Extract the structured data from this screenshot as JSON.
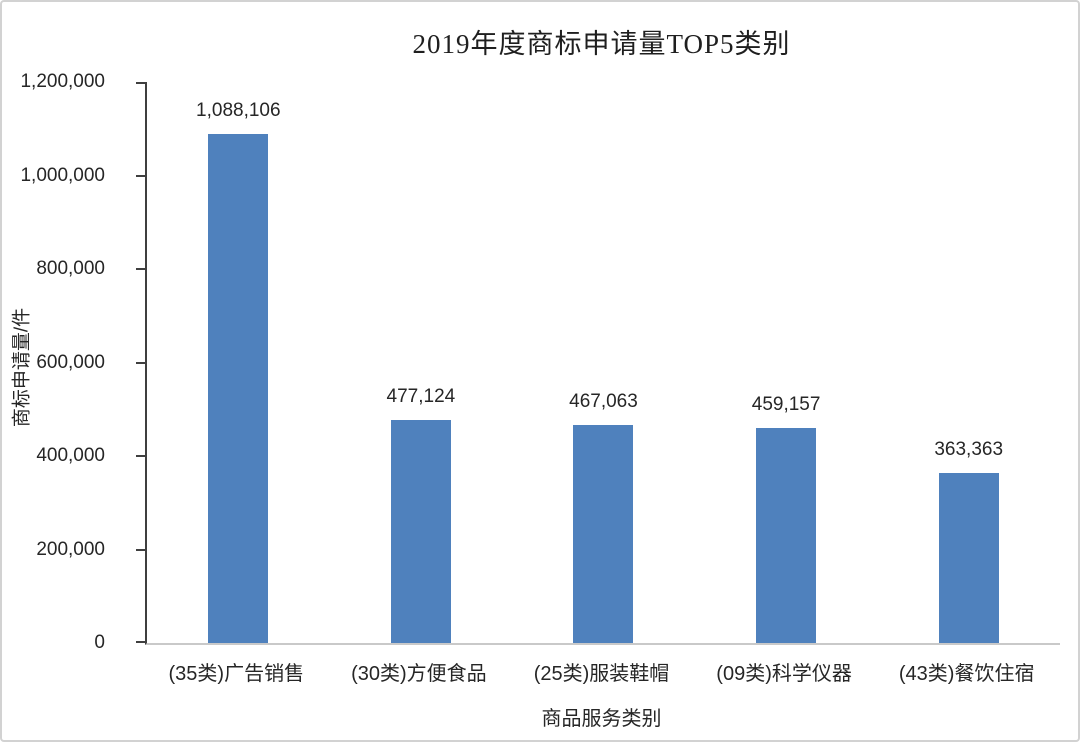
{
  "chart_data": {
    "type": "bar",
    "title": "2019年度商标申请量TOP5类别",
    "categories": [
      "(35类)广告销售",
      "(30类)方便食品",
      "(25类)服装鞋帽",
      "(09类)科学仪器",
      "(43类)餐饮住宿"
    ],
    "values": [
      1088106,
      477124,
      467063,
      459157,
      363363
    ],
    "value_labels": [
      "1,088,106",
      "477,124",
      "467,063",
      "459,157",
      "363,363"
    ],
    "xlabel": "商品服务类别",
    "ylabel": "商标申请量/件",
    "ylim": [
      0,
      1200000
    ],
    "yticks": [
      0,
      200000,
      400000,
      600000,
      800000,
      1000000,
      1200000
    ],
    "ytick_labels": [
      "0",
      "200,000",
      "400,000",
      "600,000",
      "800,000",
      "1,000,000",
      "1,200,000"
    ],
    "grid": false,
    "legend": "none",
    "bar_color": "#4F81BD",
    "axis_color": "#3f3f3f",
    "baseline_color": "#c9c9c9",
    "text_color": "#262626"
  }
}
